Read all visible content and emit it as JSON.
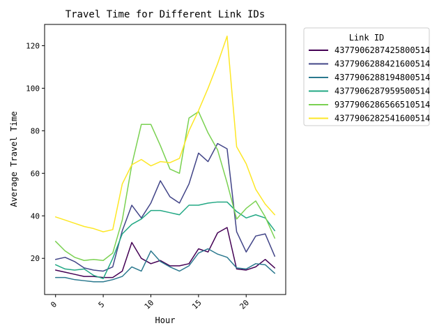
{
  "chart_data": {
    "type": "line",
    "title": "Travel Time for Different Link IDs",
    "xlabel": "Hour",
    "ylabel": "Average Travel Time",
    "xlim": [
      -1.15,
      24.15
    ],
    "ylim": [
      3,
      130
    ],
    "xticks": [
      0,
      5,
      10,
      15,
      20
    ],
    "yticks": [
      20,
      40,
      60,
      80,
      100,
      120
    ],
    "grid": false,
    "legend": {
      "title": "Link ID",
      "placement": "outside-top-right"
    },
    "x": [
      0,
      1,
      2,
      3,
      4,
      5,
      6,
      7,
      8,
      9,
      10,
      11,
      12,
      13,
      14,
      15,
      16,
      17,
      18,
      19,
      20,
      21,
      22,
      23
    ],
    "series": [
      {
        "name": "4377906287425800514",
        "color": "#440154",
        "values": [
          14.5,
          13.5,
          12.5,
          11.5,
          11.5,
          11.0,
          11.0,
          14.0,
          27.5,
          20.0,
          17.5,
          19.0,
          16.5,
          16.5,
          17.5,
          24.5,
          23.0,
          32.0,
          34.5,
          15.0,
          14.5,
          16.0,
          19.5,
          15.5
        ]
      },
      {
        "name": "4377906288421600514",
        "color": "#414487",
        "values": [
          19.5,
          20.5,
          18.5,
          15.5,
          14.5,
          14.0,
          16.0,
          33.0,
          45.0,
          39.0,
          46.0,
          56.5,
          49.0,
          46.0,
          55.0,
          69.5,
          65.5,
          74.0,
          71.5,
          32.5,
          23.0,
          30.5,
          31.5,
          21.0
        ]
      },
      {
        "name": "4377906288194800514",
        "color": "#2a788e",
        "values": [
          11.0,
          11.0,
          10.0,
          9.5,
          9.0,
          9.0,
          10.0,
          11.5,
          16.0,
          14.0,
          23.5,
          18.5,
          16.0,
          14.0,
          16.5,
          22.5,
          24.5,
          22.0,
          20.5,
          15.5,
          15.0,
          17.5,
          17.0,
          13.0
        ]
      },
      {
        "name": "4377906287959500514",
        "color": "#22a884",
        "values": [
          17.0,
          15.0,
          14.5,
          15.0,
          12.0,
          10.5,
          20.0,
          31.5,
          36.0,
          38.5,
          42.5,
          42.5,
          41.5,
          40.5,
          45.0,
          45.0,
          46.0,
          46.5,
          46.5,
          42.0,
          39.0,
          40.5,
          39.0,
          33.0
        ]
      },
      {
        "name": "9377906286566510514",
        "color": "#7ad151",
        "values": [
          28.0,
          23.5,
          20.5,
          19.0,
          19.5,
          19.0,
          22.5,
          38.0,
          64.0,
          83.0,
          83.0,
          73.0,
          62.0,
          60.0,
          86.0,
          89.0,
          79.0,
          71.0,
          55.5,
          38.5,
          43.5,
          47.0,
          39.5,
          29.5
        ]
      },
      {
        "name": "4377906282541600514",
        "color": "#fde725",
        "values": [
          39.5,
          38.0,
          36.5,
          35.0,
          34.0,
          32.5,
          33.5,
          55.0,
          64.0,
          66.5,
          63.5,
          65.5,
          65.0,
          67.0,
          80.0,
          89.5,
          100.0,
          111.5,
          124.5,
          72.5,
          64.5,
          52.5,
          45.5,
          40.5
        ]
      }
    ]
  }
}
